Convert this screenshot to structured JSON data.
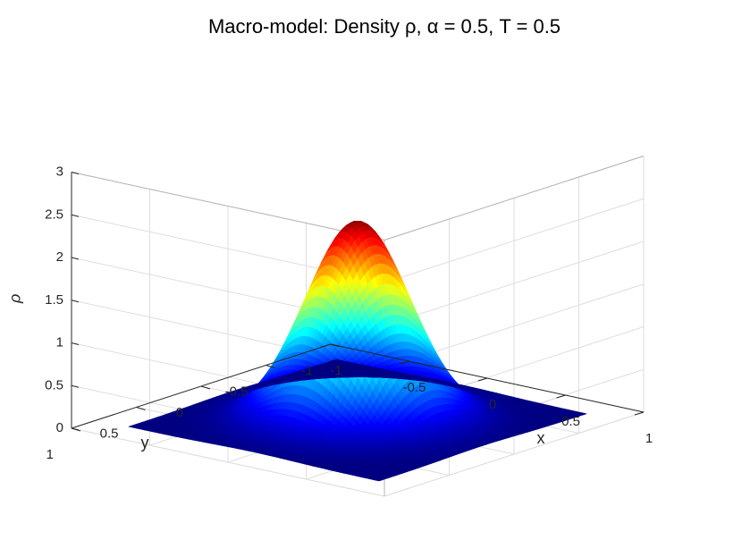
{
  "chart_data": {
    "type": "surface",
    "title": "Macro-model: Density ρ, α = 0.5, T = 0.5",
    "xlabel": "x",
    "ylabel": "y",
    "zlabel": "ρ",
    "xlim": [
      -1,
      1
    ],
    "ylim": [
      -1,
      1
    ],
    "zlim": [
      0,
      3
    ],
    "x_ticks": [
      "-1",
      "-0.5",
      "0",
      "0.5",
      "1"
    ],
    "y_ticks": [
      "-1",
      "-0.5",
      "0",
      "0.5",
      "1"
    ],
    "z_ticks": [
      "0",
      "0.5",
      "1",
      "1.5",
      "2",
      "2.5",
      "3"
    ],
    "grid": true,
    "colormap": "jet",
    "surface": {
      "function": "gaussian",
      "peak": 2.33,
      "center": [
        0,
        0
      ],
      "sigma": 0.26,
      "domain": "x,y in [-0.8, 0.8]"
    }
  }
}
